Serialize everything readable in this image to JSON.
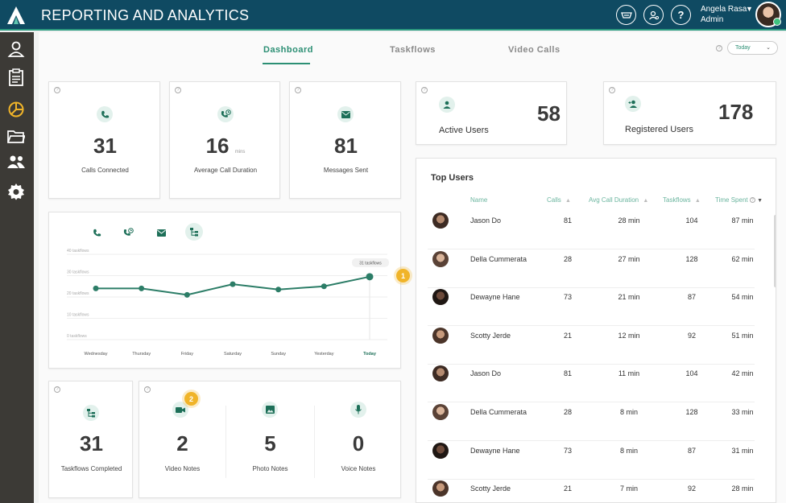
{
  "app": {
    "title": "REPORTING AND ANALYTICS"
  },
  "user": {
    "name": "Angela Rasa",
    "role": "Admin"
  },
  "tabs": [
    "Dashboard",
    "Taskflows",
    "Video Calls"
  ],
  "active_tab": "Dashboard",
  "date_filter": "Today",
  "stats": {
    "calls_connected": {
      "value": "31",
      "label": "Calls Connected"
    },
    "avg_call_duration": {
      "value": "16",
      "unit": "mins",
      "label": "Average Call Duration"
    },
    "messages_sent": {
      "value": "81",
      "label": "Messages Sent"
    },
    "active_users": {
      "value": "58",
      "label": "Active Users"
    },
    "registered_users": {
      "value": "178",
      "label": "Registered Users"
    },
    "taskflows_completed": {
      "value": "31",
      "label": "Taskflows Completed"
    },
    "video_notes": {
      "value": "2",
      "label": "Video Notes"
    },
    "photo_notes": {
      "value": "5",
      "label": "Photo Notes"
    },
    "voice_notes": {
      "value": "0",
      "label": "Voice Notes"
    }
  },
  "badges": {
    "chart": "1",
    "notes": "2"
  },
  "chart_data": {
    "type": "line",
    "categories": [
      "Wednesday",
      "Thursday",
      "Friday",
      "Saturday",
      "Sunday",
      "Yesterday",
      "Today"
    ],
    "series": [
      {
        "values": [
          24,
          24,
          21,
          26,
          23.5,
          25,
          29.5
        ]
      }
    ],
    "ytick_labels": [
      "0 taskflows",
      "10 taskflows",
      "20 taskflows",
      "30 taskflows",
      "40 taskflows"
    ],
    "yticks": [
      0,
      10,
      20,
      30,
      40
    ],
    "ylim": [
      0,
      40
    ],
    "tooltip": "31 taskflows",
    "grid": true
  },
  "top_users": {
    "title": "Top Users",
    "columns": [
      "Name",
      "Calls",
      "Avg Call Duration",
      "Taskflows",
      "Time Spent"
    ],
    "rows": [
      {
        "name": "Jason Do",
        "calls": "81",
        "avg": "28 min",
        "taskflows": "104",
        "time": "87 min"
      },
      {
        "name": "Della Cummerata",
        "calls": "28",
        "avg": "27 min",
        "taskflows": "128",
        "time": "62 min"
      },
      {
        "name": "Dewayne Hane",
        "calls": "73",
        "avg": "21 min",
        "taskflows": "87",
        "time": "54 min"
      },
      {
        "name": "Scotty Jerde",
        "calls": "21",
        "avg": "12 min",
        "taskflows": "92",
        "time": "51 min"
      },
      {
        "name": "Jason Do",
        "calls": "81",
        "avg": "11 min",
        "taskflows": "104",
        "time": "42 min"
      },
      {
        "name": "Della Cummerata",
        "calls": "28",
        "avg": "8 min",
        "taskflows": "128",
        "time": "33 min"
      },
      {
        "name": "Dewayne Hane",
        "calls": "73",
        "avg": "8 min",
        "taskflows": "87",
        "time": "31 min"
      },
      {
        "name": "Scotty Jerde",
        "calls": "21",
        "avg": "7 min",
        "taskflows": "92",
        "time": "28 min"
      }
    ]
  },
  "colors": {
    "brand": "#0f4a62",
    "accent": "#2c8f74",
    "badge": "#f0b429",
    "sidebar": "#3c3a36"
  },
  "icons": {
    "sidebar": [
      "user-icon",
      "clipboard-icon",
      "pie-chart-icon",
      "folder-icon",
      "users-icon",
      "gear-icon"
    ],
    "topbar": [
      "tray-icon",
      "user-settings-icon",
      "help-icon"
    ]
  }
}
